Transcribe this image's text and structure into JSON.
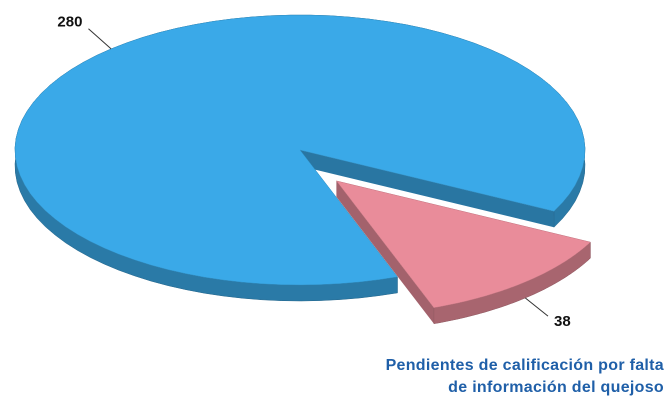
{
  "chart_data": {
    "type": "pie",
    "categories": [
      null,
      "Pendientes de calificación por falta de información del quejoso"
    ],
    "values": [
      280,
      38
    ],
    "colors": [
      "#3aa9e8",
      "#e98c9a"
    ]
  }
}
